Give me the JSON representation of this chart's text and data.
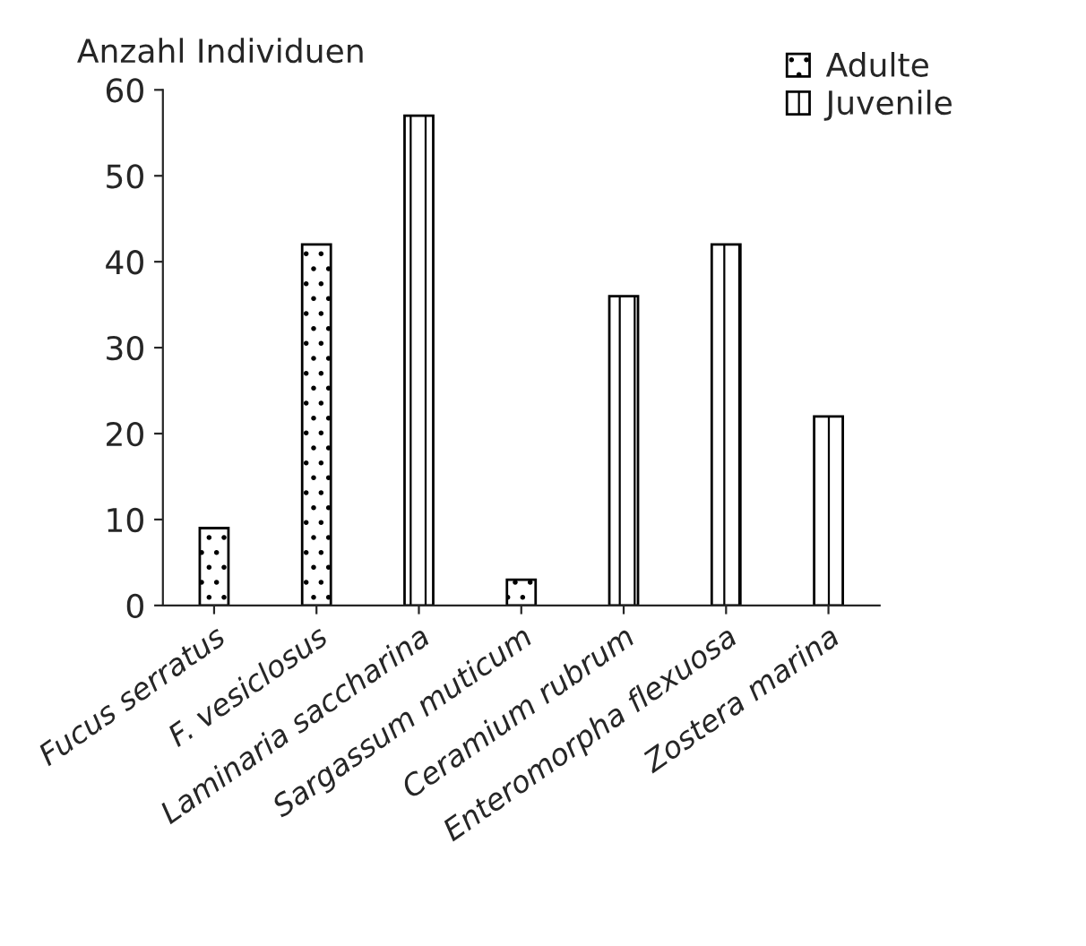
{
  "chart_data": {
    "type": "bar",
    "ylabel": "Anzahl Individuen",
    "categories": [
      "Fucus serratus",
      "F. vesiclosus",
      "Laminaria saccharina",
      "Sargassum muticum",
      "Ceramium rubrum",
      "Enteromorpha flexuosa",
      "Zostera marina"
    ],
    "series": [
      {
        "name": "Adulte",
        "color": "#000000",
        "values": [
          9,
          42,
          null,
          3,
          null,
          null,
          null
        ]
      },
      {
        "name": "Juvenile",
        "color": "#000000",
        "values": [
          null,
          null,
          57,
          null,
          36,
          42,
          22
        ]
      }
    ],
    "ylim": [
      0,
      60
    ],
    "yticks": [
      0,
      10,
      20,
      30,
      40,
      50,
      60
    ],
    "grid": false,
    "legend": "top right"
  }
}
